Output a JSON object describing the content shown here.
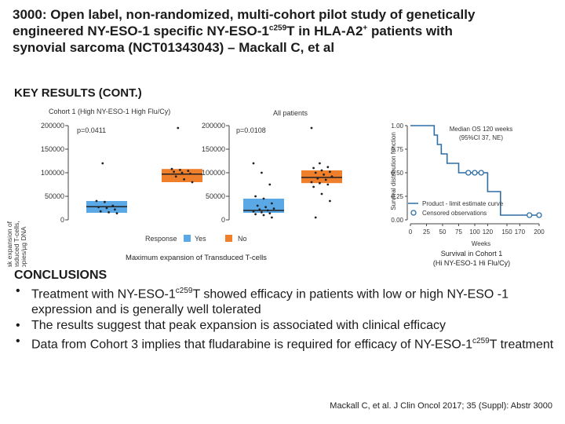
{
  "title": {
    "part1": "3000: Open label, non-randomized, multi-cohort pilot study of genetically engineered NY-ESO-1 specific NY-ESO-1",
    "sup1": "c259",
    "part2": "T in HLA-A2",
    "sup2": "+",
    "part3": " patients with synovial sarcoma (NCT01343043) – Mackall C, et al"
  },
  "subhead": "KEY RESULTS (CONT.)",
  "boxplots": {
    "ylabel_line1": "Peak expansion of",
    "ylabel_line2": "transduced T-cells,",
    "ylabel_line3": "copies/µg DNA",
    "yticks": [
      "200000",
      "150000",
      "100000",
      "50000",
      "0"
    ],
    "panel_left_title": "Cohort 1 (High NY-ESO-1 High Flu/Cy)",
    "panel_right_title": "All patients",
    "pvalue_left": "p=0.0411",
    "pvalue_right": "p=0.0108",
    "legend_title": "Response",
    "legend_yes": "Yes",
    "legend_no": "No",
    "caption": "Maximum expansion of Transduced T-cells",
    "colors": {
      "yes": "#5aa9e6",
      "no": "#f07f2b"
    }
  },
  "chart_data": [
    {
      "type": "box",
      "title": "Cohort 1 (High NY-ESO-1 High Flu/Cy)",
      "ylabel": "Peak expansion of transduced T-cells, copies/µg DNA",
      "ylim": [
        0,
        200000
      ],
      "annotation": "p=0.0411",
      "groups": [
        {
          "name": "Yes",
          "q1": 15000,
          "median": 28000,
          "q3": 40000,
          "points": [
            40000,
            38000,
            30000,
            27000,
            25000,
            22000,
            18000,
            16000,
            14000,
            120000
          ]
        },
        {
          "name": "No",
          "q1": 80000,
          "median": 97000,
          "q3": 108000,
          "points": [
            108000,
            106000,
            104000,
            102000,
            100000,
            98000,
            92000,
            86000,
            80000,
            195000
          ]
        }
      ]
    },
    {
      "type": "box",
      "title": "All patients",
      "ylim": [
        0,
        200000
      ],
      "annotation": "p=0.0108",
      "groups": [
        {
          "name": "Yes",
          "q1": 15000,
          "median": 20000,
          "q3": 45000,
          "points": [
            120000,
            100000,
            75000,
            50000,
            45000,
            35000,
            30000,
            27000,
            24000,
            22000,
            20000,
            18000,
            16000,
            14000,
            12000,
            10000,
            5000
          ]
        },
        {
          "name": "No",
          "q1": 78000,
          "median": 90000,
          "q3": 105000,
          "points": [
            195000,
            120000,
            112000,
            110000,
            105000,
            102000,
            100000,
            96000,
            92000,
            88000,
            85000,
            80000,
            78000,
            75000,
            70000,
            55000,
            40000,
            5000
          ]
        }
      ]
    },
    {
      "type": "line",
      "title": "Survival in Cohort 1 (Hi NY-ESO-1 Hi Flu/Cy)",
      "ylabel": "Survival distribution function",
      "xlabel": "Weeks",
      "xticks": [
        0,
        25,
        50,
        75,
        100,
        120,
        150,
        170,
        200
      ],
      "yticks": [
        "0.00",
        "0.25",
        "0.50",
        "0.75",
        "1.00"
      ],
      "xlim": [
        0,
        200
      ],
      "ylim": [
        0,
        1
      ],
      "annotation": "Median OS 120 weeks (95%CI 37, NE)",
      "series": [
        {
          "name": "Product - limit estimate curve",
          "steps": [
            [
              0,
              1.0
            ],
            [
              37,
              1.0
            ],
            [
              37,
              0.9
            ],
            [
              42,
              0.9
            ],
            [
              42,
              0.8
            ],
            [
              48,
              0.8
            ],
            [
              48,
              0.7
            ],
            [
              57,
              0.7
            ],
            [
              57,
              0.6
            ],
            [
              75,
              0.6
            ],
            [
              75,
              0.5
            ],
            [
              120,
              0.5
            ],
            [
              120,
              0.3
            ],
            [
              140,
              0.3
            ],
            [
              140,
              0.05
            ],
            [
              200,
              0.05
            ]
          ]
        },
        {
          "name": "Censored observations",
          "points": [
            [
              90,
              0.5
            ],
            [
              100,
              0.5
            ],
            [
              110,
              0.5
            ],
            [
              185,
              0.05
            ],
            [
              200,
              0.05
            ]
          ]
        }
      ]
    }
  ],
  "survival": {
    "ylabel": "Survival distribution function",
    "xlabel": "Weeks",
    "xticks": [
      "0",
      "25",
      "50",
      "75",
      "100",
      "120",
      "150",
      "170",
      "200"
    ],
    "yticks": [
      "1.00",
      "0.75",
      "0.50",
      "0.25",
      "0.00"
    ],
    "median_line1": "Median OS 120 weeks",
    "median_line2": "(95%CI 37, NE)",
    "legend_curve": "Product - limit estimate curve",
    "legend_censored": "Censored observations",
    "caption_line1": "Survival in Cohort 1",
    "caption_line2": "(Hi NY-ESO-1 Hi Flu/Cy)",
    "color": "#2e6fa6"
  },
  "conclusions": {
    "heading": "CONCLUSIONS",
    "b1_pre": "Treatment with NY-ESO-1",
    "b1_sup": "c259",
    "b1_post": "T showed efficacy in patients with low or high NY-ESO -1 expression and is generally well tolerated",
    "b2": "The results suggest that peak expansion is associated with clinical efficacy",
    "b3_pre": "Data from Cohort 3 implies that fludarabine is required for efficacy of NY-ESO-1",
    "b3_sup": "c259",
    "b3_post": "T treatment"
  },
  "citation": "Mackall C, et al. J Clin Oncol 2017; 35 (Suppl): Abstr 3000"
}
